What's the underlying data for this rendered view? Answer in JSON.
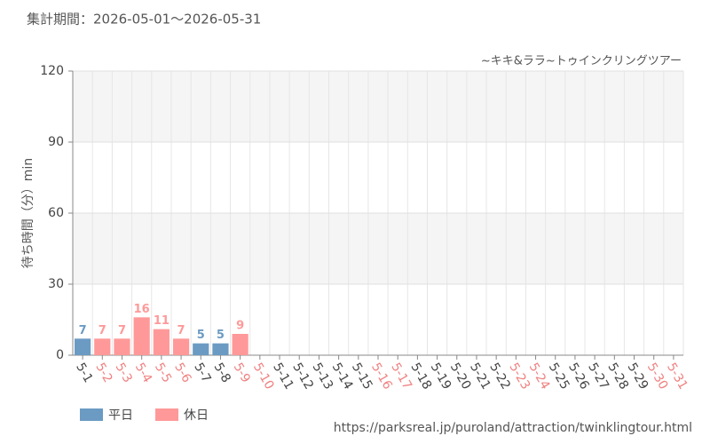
{
  "chart_data": {
    "type": "bar",
    "title": "集計期間：2026-05-01〜2026-05-31",
    "subtitle": "~キキ&ララ~トゥインクリングツアー",
    "y_label": "待ち時間（分）min",
    "source": "https://parksreal.jp/puroland/attraction/twinklingtour.html",
    "categories": [
      "5-1",
      "5-2",
      "5-3",
      "5-4",
      "5-5",
      "5-6",
      "5-7",
      "5-8",
      "5-9",
      "5-10",
      "5-11",
      "5-12",
      "5-13",
      "5-14",
      "5-15",
      "5-16",
      "5-17",
      "5-18",
      "5-19",
      "5-20",
      "5-21",
      "5-22",
      "5-23",
      "5-24",
      "5-25",
      "5-26",
      "5-27",
      "5-28",
      "5-29",
      "5-30",
      "5-31"
    ],
    "category_colors": [
      "#444",
      "#f08080",
      "#f08080",
      "#f08080",
      "#f08080",
      "#f08080",
      "#444",
      "#444",
      "#f08080",
      "#f08080",
      "#444",
      "#444",
      "#444",
      "#444",
      "#444",
      "#f08080",
      "#f08080",
      "#444",
      "#444",
      "#444",
      "#444",
      "#444",
      "#f08080",
      "#f08080",
      "#444",
      "#444",
      "#444",
      "#444",
      "#444",
      "#f08080",
      "#f08080"
    ],
    "series": [
      {
        "name": "平日",
        "color": "#6b9bc3",
        "values": [
          7,
          null,
          null,
          null,
          null,
          null,
          5,
          5,
          null,
          null,
          null,
          null,
          null,
          null,
          null,
          null,
          null,
          null,
          null,
          null,
          null,
          null,
          null,
          null,
          null,
          null,
          null,
          null,
          null,
          null,
          null
        ]
      },
      {
        "name": "休日",
        "color": "#ff9999",
        "values": [
          null,
          7,
          7,
          16,
          11,
          7,
          null,
          null,
          9,
          null,
          null,
          null,
          null,
          null,
          null,
          null,
          null,
          null,
          null,
          null,
          null,
          null,
          null,
          null,
          null,
          null,
          null,
          null,
          null,
          null,
          null
        ]
      }
    ],
    "ylim": [
      0,
      120
    ],
    "yticks": [
      0,
      30,
      60,
      90,
      120
    ],
    "grid": true
  }
}
